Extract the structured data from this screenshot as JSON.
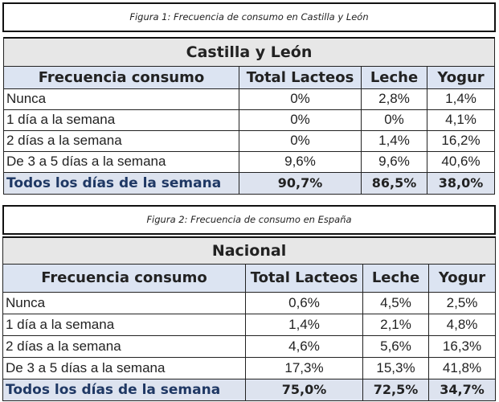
{
  "figures": [
    {
      "caption": "Figura 1: Frecuencia de consumo en Castilla y León",
      "table": {
        "title": "Castilla y León",
        "headers": [
          "Frecuencia consumo",
          "Total Lacteos",
          "Leche",
          "Yogur"
        ],
        "rows": [
          [
            "Nunca",
            "0%",
            "2,8%",
            "1,4%"
          ],
          [
            "1 día a la semana",
            "0%",
            "0%",
            "4,1%"
          ],
          [
            "2 días a la semana",
            "0%",
            "1,4%",
            "16,2%"
          ],
          [
            "De 3 a 5 días a la semana",
            "9,6%",
            "9,6%",
            "40,6%"
          ]
        ],
        "total": [
          "Todos los días de la semana",
          "90,7%",
          "86,5%",
          "38,0%"
        ]
      }
    },
    {
      "caption": "Figura 2: Frecuencia de consumo en España",
      "table": {
        "title": "Nacional",
        "headers": [
          "Frecuencia consumo",
          "Total Lacteos",
          "Leche",
          "Yogur"
        ],
        "rows": [
          [
            "Nunca",
            "0,6%",
            "4,5%",
            "2,5%"
          ],
          [
            "1 día a la semana",
            "1,4%",
            "2,1%",
            "4,8%"
          ],
          [
            "2 días a la semana",
            "4,6%",
            "5,6%",
            "16,3%"
          ],
          [
            "De 3 a 5 días a la semana",
            "17,3%",
            "15,3%",
            "41,8%"
          ]
        ],
        "total": [
          "Todos los días de la semana",
          "75,0%",
          "72,5%",
          "34,7%"
        ]
      }
    }
  ]
}
